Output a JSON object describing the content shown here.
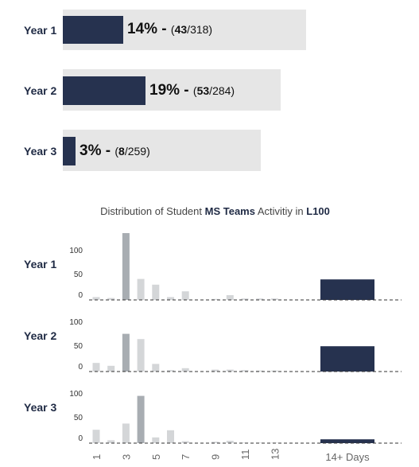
{
  "progress": [
    {
      "year": "Year 1",
      "pct_label": "14%",
      "count": "43",
      "total": "318",
      "fraction": 0.14
    },
    {
      "year": "Year 2",
      "pct_label": "19%",
      "count": "53",
      "total": "284",
      "fraction": 0.19
    },
    {
      "year": "Year 3",
      "pct_label": "3%",
      "count": "8",
      "total": "259",
      "fraction": 0.03
    }
  ],
  "title": {
    "prefix": "Distribution of Student ",
    "bold1": "MS Teams",
    "middle": " Activitiy in ",
    "bold2": "L100"
  },
  "colors": {
    "highlight": "#a8adb2",
    "normal": "#d4d6d8",
    "overflow": "#26324f",
    "track": "#e6e6e6"
  },
  "chart_data": {
    "type": "bar",
    "xlabel": "",
    "ylabel": "",
    "x_tick_labels": [
      "1",
      "3",
      "5",
      "7",
      "9",
      "11",
      "13",
      "14+ Days"
    ],
    "y_ticks": [
      0,
      50,
      100
    ],
    "days": [
      1,
      2,
      3,
      4,
      5,
      6,
      7,
      8,
      9,
      10,
      11,
      12,
      13
    ],
    "series": [
      {
        "name": "Year 1",
        "values": [
          6,
          4,
          140,
          44,
          32,
          6,
          18,
          0,
          2,
          10,
          3,
          3,
          3
        ],
        "highlight_day": 3,
        "overflow_value": 43
      },
      {
        "name": "Year 2",
        "values": [
          18,
          12,
          79,
          68,
          16,
          3,
          7,
          0,
          4,
          4,
          3,
          2,
          2
        ],
        "highlight_day": 3,
        "overflow_value": 53
      },
      {
        "name": "Year 3",
        "values": [
          28,
          6,
          41,
          99,
          12,
          27,
          4,
          0,
          3,
          5,
          1,
          1,
          1
        ],
        "highlight_day": 4,
        "overflow_value": 8
      }
    ]
  }
}
